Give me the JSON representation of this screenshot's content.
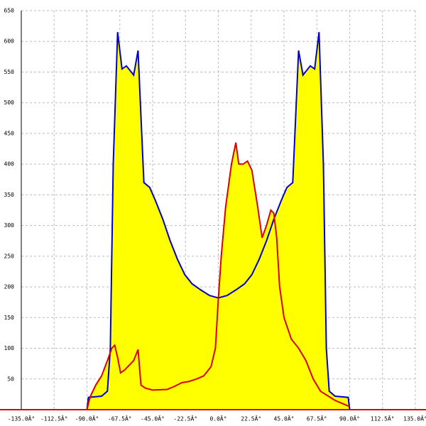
{
  "chart_data": {
    "type": "area",
    "xlim": [
      -135,
      135
    ],
    "xticks": [
      {
        "value": -135,
        "label": "-135.0Â°"
      },
      {
        "value": -112.5,
        "label": "-112.5Â°"
      },
      {
        "value": -90,
        "label": "-90.0Â°"
      },
      {
        "value": -67.5,
        "label": "-67.5Â°"
      },
      {
        "value": -45,
        "label": "-45.0Â°"
      },
      {
        "value": -22.5,
        "label": "-22.5Â°"
      },
      {
        "value": 0,
        "label": "0.0Â°"
      },
      {
        "value": 22.5,
        "label": "22.5Â°"
      },
      {
        "value": 45,
        "label": "45.0Â°"
      },
      {
        "value": 67.5,
        "label": "67.5Â°"
      },
      {
        "value": 90,
        "label": "90.0Â°"
      },
      {
        "value": 112.5,
        "label": "112.5Â°"
      },
      {
        "value": 135,
        "label": "135.0Â°"
      }
    ],
    "ylim": [
      0,
      650
    ],
    "yticks": [
      50,
      100,
      150,
      200,
      250,
      300,
      350,
      400,
      450,
      500,
      550,
      600,
      650
    ],
    "grid": true,
    "fill": "#ffff00",
    "series": [
      {
        "color": "#0000cc",
        "x": [
          -90,
          -89,
          -80,
          -76,
          -74,
          -72,
          -69,
          -66,
          -63,
          -58,
          -55,
          -51,
          -47,
          -43,
          -38,
          -33,
          -28,
          -23,
          -18,
          -12,
          -6,
          0,
          6,
          12,
          18,
          23,
          28,
          33,
          38,
          43,
          47,
          51,
          55,
          58,
          63,
          66,
          69,
          72,
          74,
          76,
          80,
          89,
          90
        ],
        "values": [
          0,
          20,
          22,
          30,
          100,
          400,
          615,
          555,
          560,
          545,
          585,
          370,
          362,
          340,
          310,
          275,
          245,
          220,
          205,
          195,
          186,
          182,
          186,
          195,
          205,
          220,
          245,
          275,
          310,
          340,
          362,
          370,
          585,
          545,
          560,
          555,
          615,
          400,
          100,
          30,
          22,
          20,
          0
        ]
      },
      {
        "color": "#dd0000",
        "x": [
          -90,
          -88,
          -84,
          -80,
          -76,
          -73,
          -71,
          -69,
          -67,
          -64,
          -62,
          -58,
          -55,
          -53,
          -50,
          -45,
          -35,
          -30,
          -25,
          -20,
          -15,
          -10,
          -5,
          -2,
          0,
          2,
          5,
          9,
          12,
          14,
          17,
          20,
          23,
          27,
          30,
          33,
          36,
          38,
          40,
          42,
          45,
          50,
          55,
          60,
          65,
          70,
          80,
          90
        ],
        "values": [
          0,
          20,
          40,
          55,
          80,
          100,
          105,
          85,
          60,
          65,
          70,
          80,
          98,
          40,
          35,
          32,
          33,
          38,
          44,
          46,
          50,
          55,
          70,
          100,
          180,
          250,
          330,
          400,
          435,
          400,
          400,
          405,
          390,
          330,
          280,
          300,
          325,
          320,
          280,
          200,
          150,
          115,
          100,
          80,
          50,
          30,
          15,
          5
        ]
      }
    ]
  }
}
